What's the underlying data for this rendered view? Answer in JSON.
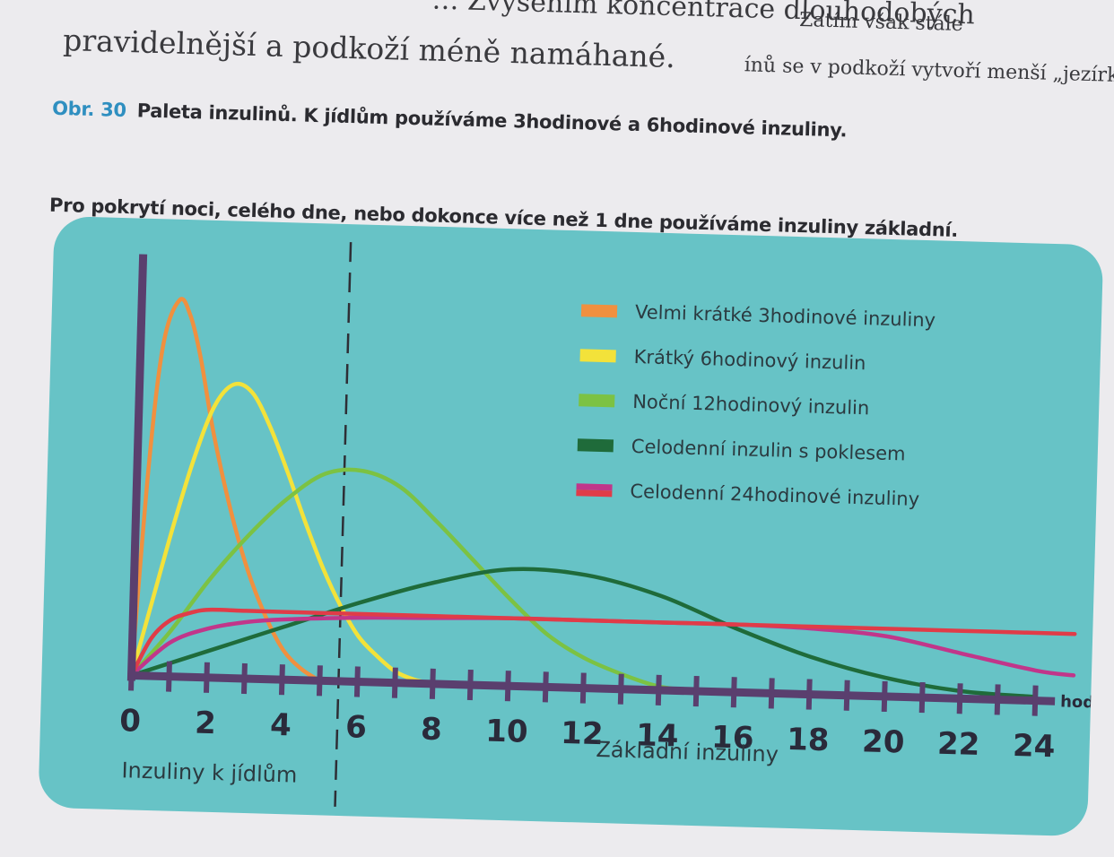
{
  "page_text": {
    "line1": "… Zvýšením koncentrace dlouhodobých",
    "line1_right": "Zatím však stále",
    "line2": "pravidelnější a podkoží méně namáhané.",
    "line2_right": "ínů se v podkoží vytvoří menší „jezírko“, vstřebávání bude"
  },
  "caption": {
    "number": "Obr. 30",
    "line1": "Paleta inzulinů. K jídlům používáme 3hodinové a 6hodinové inzuliny.",
    "line2": "Pro pokrytí noci, celého dne, nebo dokonce více než 1 dne používáme inzuliny základní."
  },
  "colors": {
    "panel": "#67c3c6",
    "axis": "#5a3f6e",
    "divider": "#2e2e35"
  },
  "chart_data": {
    "type": "line",
    "title": "",
    "xlabel": "hod.",
    "ylabel": "",
    "x_ticks": [
      0,
      2,
      4,
      6,
      8,
      10,
      12,
      14,
      16,
      18,
      20,
      22,
      24
    ],
    "x_tick_labels": [
      "0",
      "2",
      "4",
      "6",
      "8",
      "10",
      "12",
      "14",
      "16",
      "18",
      "20",
      "22",
      "24"
    ],
    "xlim": [
      0,
      25
    ],
    "ylim": [
      0,
      100
    ],
    "divider_x": 5.5,
    "regions": [
      {
        "label": "Inzuliny k jídlům"
      },
      {
        "label": "Základní inzuliny"
      }
    ],
    "legend_position": "top-right",
    "series": [
      {
        "name": "Velmi krátké 3hodinové inzuliny",
        "color": "#f0903f",
        "x": [
          0,
          0.3,
          0.6,
          1.0,
          1.3,
          1.6,
          2.0,
          2.5,
          3.0,
          3.5,
          4.0,
          4.5,
          5.0
        ],
        "y": [
          0,
          55,
          88,
          100,
          96,
          85,
          65,
          45,
          29,
          17,
          8,
          3,
          0
        ]
      },
      {
        "name": "Krátký 6hodinový inzulin",
        "color": "#f3e23a",
        "x": [
          0,
          0.5,
          1.0,
          1.5,
          2.0,
          2.5,
          3.0,
          3.5,
          4.0,
          4.5,
          5.0,
          5.5,
          6.0,
          6.5,
          7.0,
          7.5,
          8.0
        ],
        "y": [
          0,
          20,
          40,
          58,
          72,
          78,
          76,
          67,
          55,
          42,
          30,
          20,
          12,
          7,
          3,
          1,
          0
        ]
      },
      {
        "name": "Noční 12hodinový inzulin",
        "color": "#7cc243",
        "x": [
          0,
          1,
          2,
          3,
          4,
          5,
          6,
          7,
          8,
          9,
          10,
          11,
          12,
          13,
          14,
          15
        ],
        "y": [
          0,
          12,
          26,
          38,
          48,
          55,
          56,
          52,
          43,
          33,
          23,
          14,
          8,
          4,
          1,
          0
        ]
      },
      {
        "name": "Celodenní inzulin s poklesem",
        "color": "#1f6b3a",
        "x": [
          0,
          2,
          4,
          6,
          8,
          10,
          12,
          14,
          16,
          18,
          20,
          22,
          24
        ],
        "y": [
          0,
          7,
          14,
          21,
          27,
          31,
          30,
          25,
          17,
          10,
          5,
          2,
          1
        ]
      },
      {
        "name": "Celodenní 24hodinové inzuliny",
        "color": "#c1368a",
        "x": [
          0,
          1,
          2,
          3,
          4,
          6,
          8,
          10,
          12,
          14,
          16,
          18,
          20,
          22,
          24,
          25
        ],
        "y": [
          0,
          9,
          13,
          15,
          16,
          17,
          17.5,
          18,
          18,
          18,
          18,
          17.5,
          16,
          12,
          8,
          7
        ]
      },
      {
        "name": "",
        "color": "#e03c48",
        "x": [
          0,
          0.5,
          1,
          1.5,
          2,
          3,
          4,
          6,
          8,
          10,
          12,
          14,
          16,
          18,
          20,
          22,
          24,
          25
        ],
        "y": [
          0,
          10,
          15,
          17,
          18,
          18,
          18,
          18,
          18,
          18,
          18,
          18,
          18,
          18,
          18,
          18,
          18,
          18
        ]
      }
    ],
    "legend": [
      {
        "label": "Velmi krátké 3hodinové inzuliny",
        "colors": [
          "#f0903f"
        ]
      },
      {
        "label": "Krátký 6hodinový inzulin",
        "colors": [
          "#f3e23a"
        ]
      },
      {
        "label": "Noční 12hodinový inzulin",
        "colors": [
          "#7cc243"
        ]
      },
      {
        "label": "Celodenní inzulin s poklesem",
        "colors": [
          "#1f6b3a"
        ]
      },
      {
        "label": "Celodenní 24hodinové inzuliny",
        "colors": [
          "#c1368a",
          "#e03c48"
        ]
      }
    ]
  }
}
